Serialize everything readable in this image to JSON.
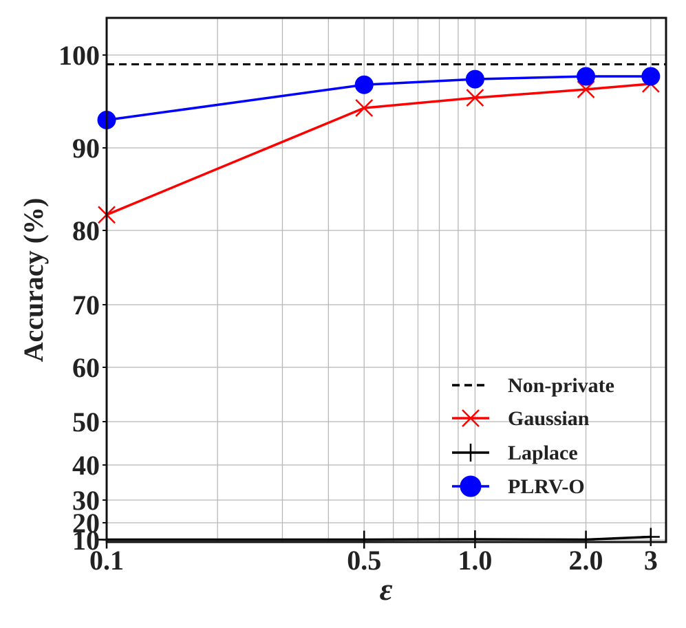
{
  "chart_data": {
    "type": "line",
    "xscale": "log",
    "x": [
      0.1,
      0.5,
      1.0,
      2.0,
      3.0
    ],
    "x_tick_labels": [
      "0.1",
      "0.5",
      "1.0",
      "2.0",
      "3"
    ],
    "xlim": [
      0.1,
      3.3
    ],
    "xlabel": "ε",
    "ylabel": "Accuracy (%)",
    "y_ticks": [
      10,
      20,
      30,
      40,
      50,
      60,
      70,
      80,
      90,
      100
    ],
    "ylim": [
      8,
      110
    ],
    "grid": true,
    "legend_position": "lower-right",
    "series": [
      {
        "name": "Non-private",
        "style": "dashed",
        "color": "#000000",
        "marker": "none",
        "values": [
          99.0,
          99.0,
          99.0,
          99.0,
          99.0
        ]
      },
      {
        "name": "Gaussian",
        "style": "solid",
        "color": "#ff0000",
        "marker": "x",
        "values": [
          81.9,
          94.3,
          95.4,
          96.3,
          96.9
        ]
      },
      {
        "name": "Laplace",
        "style": "solid",
        "color": "#000000",
        "marker": "plus",
        "values": [
          10.2,
          10.2,
          10.4,
          10.2,
          11.8
        ]
      },
      {
        "name": "PLRV-O",
        "style": "solid",
        "color": "#0000ff",
        "marker": "circle",
        "values": [
          93.0,
          96.8,
          97.4,
          97.7,
          97.7
        ]
      }
    ]
  }
}
